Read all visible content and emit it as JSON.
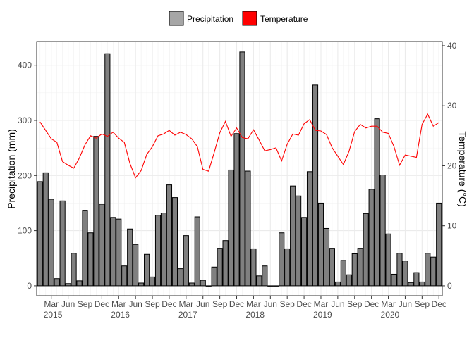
{
  "chart_data": {
    "type": "bar+line",
    "x_months": [
      "2015-01",
      "2015-02",
      "2015-03",
      "2015-04",
      "2015-05",
      "2015-06",
      "2015-07",
      "2015-08",
      "2015-09",
      "2015-10",
      "2015-11",
      "2015-12",
      "2016-01",
      "2016-02",
      "2016-03",
      "2016-04",
      "2016-05",
      "2016-06",
      "2016-07",
      "2016-08",
      "2016-09",
      "2016-10",
      "2016-11",
      "2016-12",
      "2017-01",
      "2017-02",
      "2017-03",
      "2017-04",
      "2017-05",
      "2017-06",
      "2017-07",
      "2017-08",
      "2017-09",
      "2017-10",
      "2017-11",
      "2017-12",
      "2018-01",
      "2018-02",
      "2018-03",
      "2018-04",
      "2018-05",
      "2018-06",
      "2018-07",
      "2018-08",
      "2018-09",
      "2018-10",
      "2018-11",
      "2018-12",
      "2019-01",
      "2019-02",
      "2019-03",
      "2019-04",
      "2019-05",
      "2019-06",
      "2019-07",
      "2019-08",
      "2019-09",
      "2019-10",
      "2019-11",
      "2019-12",
      "2020-01",
      "2020-02",
      "2020-03",
      "2020-04",
      "2020-05",
      "2020-06",
      "2020-07",
      "2020-08",
      "2020-09",
      "2020-10",
      "2020-11",
      "2020-12"
    ],
    "series": [
      {
        "name": "Precipitation",
        "type": "bar",
        "axis": "left",
        "color": "#808080",
        "values": [
          189,
          205,
          157,
          13,
          154,
          4,
          59,
          9,
          137,
          96,
          271,
          148,
          421,
          124,
          121,
          36,
          103,
          75,
          5,
          57,
          16,
          128,
          132,
          183,
          160,
          31,
          91,
          5,
          125,
          10,
          0,
          34,
          68,
          82,
          210,
          276,
          424,
          208,
          67,
          18,
          36,
          0,
          0,
          96,
          67,
          181,
          163,
          124,
          207,
          364,
          150,
          104,
          68,
          7,
          46,
          20,
          58,
          68,
          131,
          175,
          303,
          201,
          94,
          21,
          59,
          45,
          6,
          24,
          7,
          59,
          52,
          150
        ]
      },
      {
        "name": "Temperature",
        "type": "line",
        "axis": "right",
        "color": "#ff0000",
        "values": [
          27.3,
          25.9,
          24.5,
          23.9,
          20.7,
          20.1,
          19.6,
          21.3,
          23.5,
          25.0,
          24.6,
          25.3,
          24.9,
          25.6,
          24.6,
          23.9,
          20.4,
          18.0,
          19.2,
          21.9,
          23.2,
          25.0,
          25.3,
          25.9,
          25.1,
          25.6,
          25.2,
          24.5,
          23.2,
          19.4,
          19.1,
          22.2,
          25.5,
          27.4,
          24.9,
          26.3,
          24.7,
          24.5,
          26.0,
          24.3,
          22.5,
          22.7,
          23.0,
          20.8,
          23.6,
          25.3,
          25.1,
          27.0,
          27.7,
          25.9,
          25.8,
          25.2,
          23.0,
          21.6,
          20.2,
          22.4,
          25.7,
          26.9,
          26.3,
          26.6,
          26.6,
          25.6,
          25.4,
          23.2,
          20.1,
          21.8,
          21.6,
          21.4,
          26.9,
          28.6,
          26.6,
          27.2
        ]
      }
    ],
    "ylabel_left": "Precipitation (mm)",
    "ylabel_right": "Temperature (°C)",
    "ylim_left": [
      -18,
      443
    ],
    "yticks_left": [
      "0",
      "100",
      "200",
      "300",
      "400"
    ],
    "ylim_right": [
      -1.65,
      40.7
    ],
    "yticks_right": [
      "0",
      "10",
      "20",
      "30",
      "40"
    ],
    "xtick_labels": [
      {
        "month": "2015-03",
        "label": "Mar"
      },
      {
        "month": "2015-06",
        "label": "Jun"
      },
      {
        "month": "2015-09",
        "label": "Sep"
      },
      {
        "month": "2015-12",
        "label": "Dec"
      },
      {
        "month": "2016-03",
        "label": "Mar"
      },
      {
        "month": "2016-06",
        "label": "Jun"
      },
      {
        "month": "2016-09",
        "label": "Sep"
      },
      {
        "month": "2016-12",
        "label": "Dec"
      },
      {
        "month": "2017-03",
        "label": "Mar"
      },
      {
        "month": "2017-06",
        "label": "Jun"
      },
      {
        "month": "2017-09",
        "label": "Sep"
      },
      {
        "month": "2017-12",
        "label": "Dec"
      },
      {
        "month": "2018-03",
        "label": "Mar"
      },
      {
        "month": "2018-06",
        "label": "Jun"
      },
      {
        "month": "2018-09",
        "label": "Sep"
      },
      {
        "month": "2018-12",
        "label": "Dec"
      },
      {
        "month": "2019-03",
        "label": "Mar"
      },
      {
        "month": "2019-06",
        "label": "Jun"
      },
      {
        "month": "2019-09",
        "label": "Sep"
      },
      {
        "month": "2019-12",
        "label": "Dec"
      },
      {
        "month": "2020-03",
        "label": "Mar"
      },
      {
        "month": "2020-06",
        "label": "Jun"
      },
      {
        "month": "2020-09",
        "label": "Sep"
      },
      {
        "month": "2020-12",
        "label": "Dec"
      }
    ],
    "year_labels": [
      {
        "month": "2015-03",
        "label": "2015"
      },
      {
        "month": "2016-03",
        "label": "2016"
      },
      {
        "month": "2017-03",
        "label": "2017"
      },
      {
        "month": "2018-03",
        "label": "2018"
      },
      {
        "month": "2019-03",
        "label": "2019"
      },
      {
        "month": "2020-03",
        "label": "2020"
      }
    ],
    "legend": {
      "placement": "top",
      "items": [
        {
          "label": "Precipitation",
          "color": "#a6a6a6"
        },
        {
          "label": "Temperature",
          "color": "#ff0000"
        }
      ]
    },
    "grid": true
  }
}
